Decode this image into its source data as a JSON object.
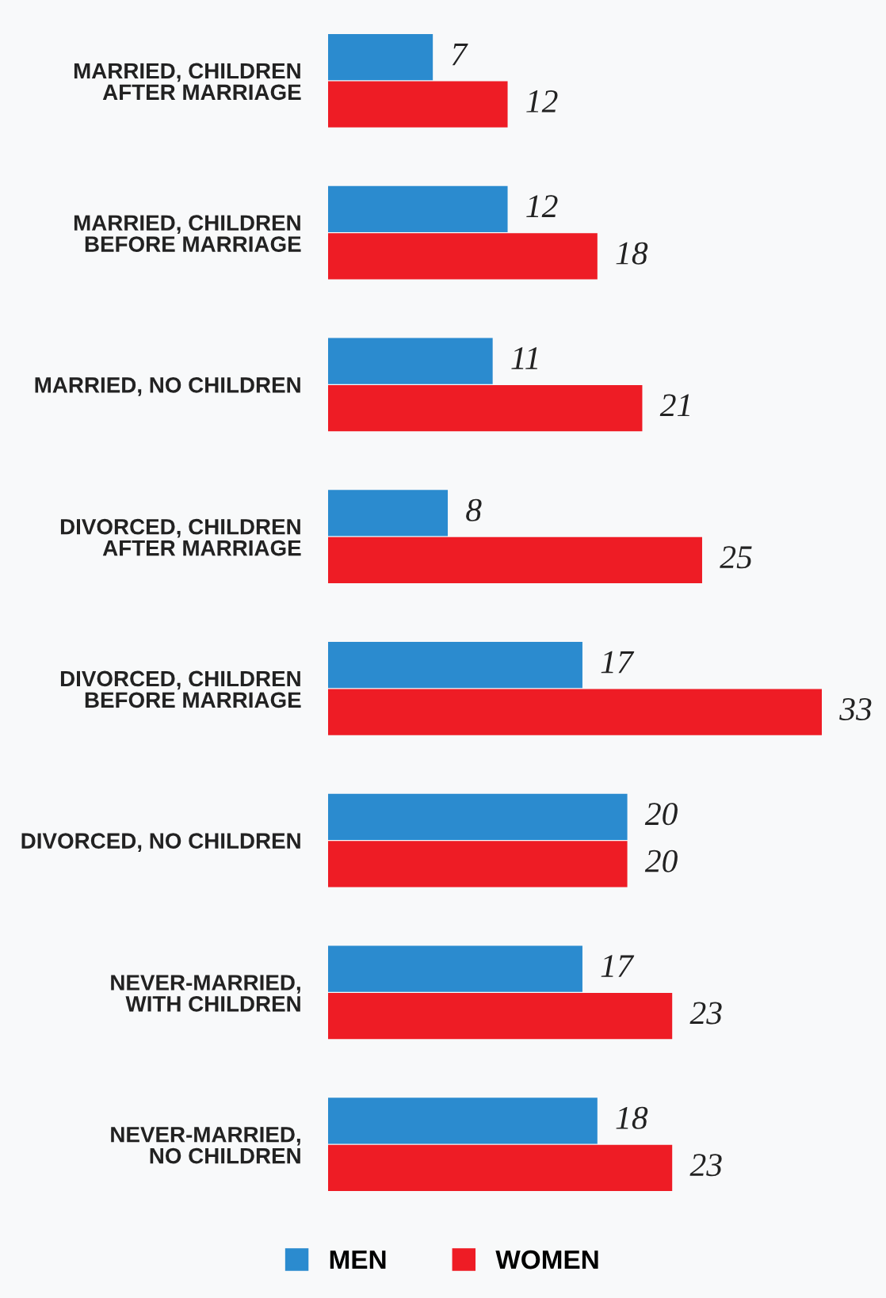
{
  "chart_data": {
    "type": "bar",
    "orientation": "horizontal",
    "data_labels": true,
    "legend": "bottom",
    "grid": false,
    "categories": [
      "MARRIED, CHILDREN\nAFTER MARRIAGE",
      "MARRIED, CHILDREN\nBEFORE MARRIAGE",
      "MARRIED, NO CHILDREN",
      "DIVORCED, CHILDREN\nAFTER MARRIAGE",
      "DIVORCED, CHILDREN\nBEFORE MARRIAGE",
      "DIVORCED, NO CHILDREN",
      "NEVER-MARRIED,\nWITH CHILDREN",
      "NEVER-MARRIED,\nNO CHILDREN"
    ],
    "series": [
      {
        "name": "MEN",
        "color": "#2b8bcf",
        "values": [
          7,
          12,
          11,
          8,
          17,
          20,
          17,
          18
        ]
      },
      {
        "name": "WOMEN",
        "color": "#ee1c25",
        "values": [
          12,
          18,
          21,
          25,
          33,
          20,
          23,
          23
        ]
      }
    ]
  }
}
